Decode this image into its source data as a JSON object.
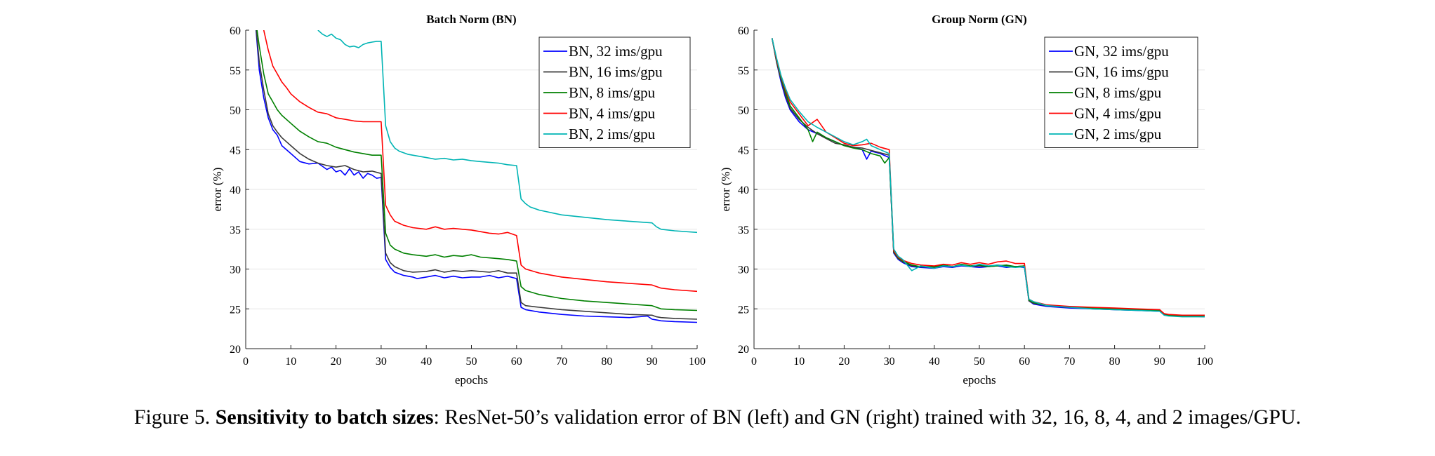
{
  "caption": {
    "prefix": "Figure 5. ",
    "bold": "Sensitivity to batch sizes",
    "rest": ": ResNet-50’s validation error of BN (left) and GN (right) trained with 32, 16, 8, 4, and 2 images/GPU."
  },
  "chart_data": [
    {
      "type": "line",
      "title": "Batch Norm (BN)",
      "xlabel": "epochs",
      "ylabel": "error (%)",
      "xlim": [
        0,
        100
      ],
      "ylim": [
        20,
        60
      ],
      "xticks": [
        0,
        10,
        20,
        30,
        40,
        50,
        60,
        70,
        80,
        90,
        100
      ],
      "yticks": [
        20,
        25,
        30,
        35,
        40,
        45,
        50,
        55,
        60
      ],
      "grid": "horizontal",
      "legend_position": "top-right",
      "series": [
        {
          "name": "BN, 32 ims/gpu",
          "color": "#0000ff",
          "x": [
            2,
            3,
            4,
            5,
            6,
            7,
            8,
            10,
            12,
            14,
            16,
            18,
            19,
            20,
            21,
            22,
            23,
            24,
            25,
            26,
            27,
            28,
            29,
            30,
            31,
            32,
            33,
            35,
            37,
            38,
            40,
            42,
            44,
            46,
            48,
            50,
            52,
            54,
            56,
            58,
            60,
            61,
            62,
            65,
            70,
            75,
            80,
            85,
            89,
            90,
            91,
            92,
            95,
            100
          ],
          "y": [
            62,
            55,
            51.5,
            49,
            47.5,
            46.8,
            45.5,
            44.5,
            43.5,
            43.2,
            43.3,
            42.5,
            42.8,
            42.2,
            42.4,
            41.8,
            42.6,
            41.8,
            42.2,
            41.4,
            42.0,
            41.8,
            41.4,
            41.5,
            31.2,
            30.2,
            29.6,
            29.2,
            29.0,
            28.8,
            29.0,
            29.2,
            28.9,
            29.1,
            28.9,
            29.0,
            29.0,
            29.2,
            28.9,
            29.1,
            28.8,
            25.2,
            24.9,
            24.6,
            24.3,
            24.1,
            24.0,
            23.9,
            24.1,
            23.7,
            23.6,
            23.5,
            23.4,
            23.3
          ]
        },
        {
          "name": "BN, 16 ims/gpu",
          "color": "#3a3a3a",
          "x": [
            2,
            3,
            4,
            5,
            6,
            7,
            8,
            10,
            12,
            14,
            16,
            18,
            20,
            22,
            24,
            26,
            28,
            30,
            31,
            32,
            33,
            35,
            37,
            40,
            42,
            44,
            46,
            48,
            50,
            52,
            54,
            56,
            58,
            60,
            61,
            62,
            65,
            70,
            75,
            80,
            85,
            90,
            91,
            92,
            95,
            100
          ],
          "y": [
            62,
            56,
            52.5,
            49.5,
            48,
            47.2,
            46.5,
            45.5,
            44.5,
            43.8,
            43.3,
            43.0,
            42.8,
            43.0,
            42.5,
            42.2,
            42.3,
            42.0,
            32.0,
            30.8,
            30.3,
            29.8,
            29.6,
            29.7,
            29.9,
            29.6,
            29.8,
            29.7,
            29.8,
            29.7,
            29.6,
            29.8,
            29.5,
            29.5,
            25.8,
            25.4,
            25.2,
            24.9,
            24.7,
            24.5,
            24.3,
            24.2,
            24.0,
            23.9,
            23.8,
            23.7
          ]
        },
        {
          "name": "BN, 8 ims/gpu",
          "color": "#008000",
          "x": [
            2,
            3,
            4,
            5,
            6,
            7,
            8,
            10,
            12,
            14,
            16,
            18,
            20,
            22,
            24,
            26,
            28,
            30,
            31,
            32,
            33,
            35,
            37,
            40,
            42,
            44,
            46,
            48,
            50,
            52,
            54,
            56,
            58,
            60,
            61,
            62,
            65,
            70,
            75,
            80,
            85,
            90,
            91,
            92,
            95,
            100
          ],
          "y": [
            62,
            58,
            54.5,
            52,
            51,
            50,
            49.3,
            48.3,
            47.3,
            46.6,
            46.0,
            45.8,
            45.3,
            45.0,
            44.7,
            44.5,
            44.3,
            44.3,
            34.5,
            33.0,
            32.5,
            32.0,
            31.8,
            31.6,
            31.8,
            31.5,
            31.7,
            31.6,
            31.8,
            31.5,
            31.4,
            31.3,
            31.2,
            31.0,
            27.8,
            27.3,
            26.8,
            26.3,
            26.0,
            25.8,
            25.6,
            25.4,
            25.2,
            25.0,
            24.9,
            24.8
          ]
        },
        {
          "name": "BN, 4 ims/gpu",
          "color": "#ff0000",
          "x": [
            4,
            5,
            6,
            7,
            8,
            9,
            10,
            12,
            14,
            16,
            18,
            20,
            22,
            24,
            26,
            28,
            30,
            31,
            32,
            33,
            35,
            37,
            40,
            42,
            44,
            46,
            48,
            50,
            52,
            54,
            56,
            58,
            60,
            61,
            62,
            65,
            70,
            75,
            80,
            85,
            90,
            91,
            92,
            95,
            100
          ],
          "y": [
            60,
            57.5,
            55.5,
            54.5,
            53.5,
            52.8,
            52.0,
            51.0,
            50.3,
            49.7,
            49.5,
            49.0,
            48.8,
            48.6,
            48.5,
            48.5,
            48.5,
            38.0,
            36.8,
            36.0,
            35.5,
            35.2,
            35.0,
            35.3,
            35.0,
            35.1,
            35.0,
            34.9,
            34.7,
            34.5,
            34.4,
            34.6,
            34.2,
            30.5,
            30.0,
            29.5,
            29.0,
            28.7,
            28.4,
            28.2,
            28.0,
            27.8,
            27.6,
            27.4,
            27.2
          ]
        },
        {
          "name": "BN, 2 ims/gpu",
          "color": "#00b4b4",
          "x": [
            16,
            17,
            18,
            19,
            20,
            21,
            22,
            23,
            24,
            25,
            26,
            27,
            28,
            29,
            30,
            31,
            32,
            33,
            34,
            36,
            38,
            40,
            42,
            44,
            46,
            48,
            50,
            52,
            54,
            56,
            58,
            60,
            61,
            62,
            63,
            65,
            70,
            75,
            80,
            85,
            90,
            91,
            92,
            95,
            100
          ],
          "y": [
            60,
            59.5,
            59.2,
            59.5,
            59.0,
            58.8,
            58.2,
            57.9,
            58.0,
            57.8,
            58.2,
            58.4,
            58.5,
            58.6,
            58.6,
            48.0,
            46.0,
            45.2,
            44.8,
            44.4,
            44.2,
            44.0,
            43.8,
            43.9,
            43.7,
            43.8,
            43.6,
            43.5,
            43.4,
            43.3,
            43.1,
            43.0,
            38.8,
            38.2,
            37.8,
            37.4,
            36.8,
            36.5,
            36.2,
            36.0,
            35.8,
            35.3,
            35.0,
            34.8,
            34.6
          ]
        }
      ]
    },
    {
      "type": "line",
      "title": "Group Norm (GN)",
      "xlabel": "epochs",
      "ylabel": "error (%)",
      "xlim": [
        0,
        100
      ],
      "ylim": [
        20,
        60
      ],
      "xticks": [
        0,
        10,
        20,
        30,
        40,
        50,
        60,
        70,
        80,
        90,
        100
      ],
      "yticks": [
        20,
        25,
        30,
        35,
        40,
        45,
        50,
        55,
        60
      ],
      "grid": "horizontal",
      "legend_position": "top-right",
      "series": [
        {
          "name": "GN, 32 ims/gpu",
          "color": "#0000ff",
          "x": [
            4,
            5,
            6,
            7,
            8,
            10,
            12,
            14,
            16,
            18,
            20,
            22,
            24,
            25,
            26,
            28,
            30,
            31,
            32,
            33,
            35,
            37,
            40,
            42,
            44,
            46,
            48,
            50,
            52,
            54,
            56,
            58,
            60,
            61,
            62,
            65,
            70,
            75,
            80,
            85,
            90,
            91,
            92,
            95,
            100
          ],
          "y": [
            59,
            56,
            53.5,
            51.5,
            50,
            48.5,
            47.5,
            47,
            46.5,
            46,
            45.5,
            45.3,
            45.0,
            43.8,
            44.8,
            44.5,
            44.0,
            32.0,
            31.2,
            30.8,
            30.3,
            30.2,
            30.1,
            30.3,
            30.2,
            30.4,
            30.3,
            30.2,
            30.3,
            30.4,
            30.2,
            30.3,
            30.2,
            26.0,
            25.6,
            25.3,
            25.1,
            25.0,
            24.9,
            24.8,
            24.7,
            24.3,
            24.2,
            24.1,
            24.0
          ]
        },
        {
          "name": "GN, 16 ims/gpu",
          "color": "#3a3a3a",
          "x": [
            4,
            5,
            6,
            7,
            8,
            10,
            12,
            14,
            16,
            18,
            20,
            22,
            24,
            26,
            28,
            30,
            31,
            32,
            33,
            35,
            37,
            40,
            42,
            44,
            46,
            48,
            50,
            52,
            54,
            56,
            58,
            60,
            61,
            62,
            65,
            70,
            75,
            80,
            85,
            90,
            91,
            92,
            95,
            100
          ],
          "y": [
            59,
            56,
            53.8,
            51.8,
            50.2,
            48.8,
            47.8,
            47,
            46.4,
            45.8,
            45.6,
            45.3,
            45.2,
            44.9,
            44.6,
            44.3,
            32.1,
            31.3,
            30.9,
            30.4,
            30.3,
            30.2,
            30.4,
            30.3,
            30.5,
            30.3,
            30.4,
            30.3,
            30.5,
            30.4,
            30.3,
            30.4,
            26.0,
            25.7,
            25.4,
            25.2,
            25.1,
            25.0,
            24.9,
            24.8,
            24.3,
            24.2,
            24.1,
            24.1
          ]
        },
        {
          "name": "GN, 8 ims/gpu",
          "color": "#008000",
          "x": [
            4,
            5,
            6,
            7,
            8,
            10,
            12,
            13,
            14,
            16,
            18,
            20,
            22,
            24,
            26,
            28,
            29,
            30,
            31,
            32,
            33,
            35,
            37,
            40,
            42,
            44,
            46,
            48,
            50,
            52,
            54,
            56,
            58,
            60,
            61,
            62,
            65,
            70,
            75,
            80,
            85,
            90,
            91,
            92,
            95,
            100
          ],
          "y": [
            59,
            56.2,
            54,
            52.2,
            50.5,
            49,
            47.5,
            46.0,
            47.2,
            46.5,
            46.0,
            45.5,
            45.2,
            45.0,
            44.5,
            44.2,
            43.3,
            44.0,
            32.2,
            31.4,
            31.0,
            30.5,
            30.3,
            30.3,
            30.5,
            30.3,
            30.6,
            30.4,
            30.5,
            30.3,
            30.4,
            30.5,
            30.3,
            30.4,
            26.1,
            25.8,
            25.4,
            25.2,
            25.1,
            25.0,
            24.9,
            24.8,
            24.4,
            24.2,
            24.1,
            24.1
          ]
        },
        {
          "name": "GN, 4 ims/gpu",
          "color": "#ff0000",
          "x": [
            4,
            5,
            6,
            7,
            8,
            10,
            12,
            14,
            16,
            18,
            20,
            22,
            24,
            26,
            28,
            30,
            31,
            32,
            33,
            35,
            37,
            40,
            42,
            44,
            46,
            48,
            50,
            52,
            54,
            56,
            58,
            60,
            61,
            62,
            65,
            70,
            75,
            80,
            85,
            90,
            91,
            92,
            95,
            100
          ],
          "y": [
            59,
            56.3,
            54.2,
            52.5,
            51,
            49.5,
            48.0,
            48.8,
            47.2,
            46.5,
            45.8,
            45.5,
            45.6,
            45.8,
            45.3,
            45.0,
            32.3,
            31.5,
            31.1,
            30.7,
            30.5,
            30.4,
            30.6,
            30.5,
            30.8,
            30.6,
            30.8,
            30.6,
            30.9,
            31.0,
            30.7,
            30.7,
            26.2,
            25.9,
            25.5,
            25.3,
            25.2,
            25.1,
            25.0,
            24.9,
            24.4,
            24.3,
            24.2,
            24.2
          ]
        },
        {
          "name": "GN, 2 ims/gpu",
          "color": "#00b4b4",
          "x": [
            4,
            5,
            6,
            7,
            8,
            10,
            12,
            14,
            16,
            18,
            20,
            22,
            24,
            25,
            26,
            28,
            30,
            31,
            32,
            33,
            35,
            37,
            40,
            42,
            44,
            46,
            48,
            50,
            52,
            54,
            56,
            58,
            60,
            61,
            62,
            65,
            70,
            75,
            80,
            85,
            90,
            91,
            92,
            95,
            100
          ],
          "y": [
            59,
            56.5,
            54.3,
            52.7,
            51.3,
            49.8,
            48.5,
            47.8,
            47.2,
            46.6,
            46.0,
            45.6,
            46.0,
            46.3,
            45.5,
            45.0,
            44.5,
            32.5,
            31.6,
            31.2,
            29.8,
            30.4,
            30.1,
            30.4,
            30.3,
            30.5,
            30.3,
            30.6,
            30.4,
            30.5,
            30.3,
            30.2,
            30.3,
            26.2,
            25.9,
            25.4,
            25.2,
            25.0,
            24.9,
            24.8,
            24.7,
            24.2,
            24.1,
            24.0,
            24.0
          ]
        }
      ]
    }
  ]
}
